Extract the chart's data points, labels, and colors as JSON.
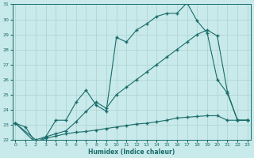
{
  "xlabel": "Humidex (Indice chaleur)",
  "bg_color": "#c9eaea",
  "grid_color": "#aed0d0",
  "line_color": "#1a6b6b",
  "xlim": [
    0,
    23
  ],
  "ylim": [
    22,
    31
  ],
  "yticks": [
    22,
    23,
    24,
    25,
    26,
    27,
    28,
    29,
    30,
    31
  ],
  "xticks": [
    0,
    1,
    2,
    3,
    4,
    5,
    6,
    7,
    8,
    9,
    10,
    11,
    12,
    13,
    14,
    15,
    16,
    17,
    18,
    19,
    20,
    21,
    22,
    23
  ],
  "line1_x": [
    0,
    1,
    2,
    3,
    4,
    5,
    6,
    7,
    8,
    9,
    10,
    11,
    12,
    13,
    14,
    15,
    16,
    17,
    18,
    19,
    20,
    21,
    22,
    23
  ],
  "line1_y": [
    23.1,
    22.85,
    21.8,
    22.1,
    22.25,
    22.4,
    22.5,
    22.55,
    22.65,
    22.75,
    22.85,
    22.95,
    23.05,
    23.1,
    23.2,
    23.3,
    23.45,
    23.5,
    23.55,
    23.6,
    23.6,
    23.3,
    23.3,
    23.3
  ],
  "line2_x": [
    0,
    2,
    3,
    4,
    5,
    6,
    7,
    8,
    9,
    10,
    11,
    12,
    13,
    14,
    15,
    16,
    17,
    18,
    19,
    20,
    21,
    22,
    23
  ],
  "line2_y": [
    23.1,
    22.0,
    22.2,
    22.4,
    22.6,
    23.2,
    23.9,
    24.5,
    24.1,
    25.0,
    25.5,
    26.0,
    26.5,
    27.0,
    27.5,
    28.0,
    28.5,
    29.0,
    29.3,
    28.9,
    25.2,
    23.3,
    23.3
  ],
  "line3_x": [
    0,
    2,
    3,
    4,
    5,
    6,
    7,
    8,
    9,
    10,
    11,
    12,
    13,
    14,
    15,
    16,
    17,
    18,
    19,
    20,
    21,
    22,
    23
  ],
  "line3_y": [
    23.1,
    21.8,
    22.2,
    23.3,
    23.3,
    24.5,
    25.3,
    24.3,
    23.9,
    28.8,
    28.5,
    29.3,
    29.7,
    30.2,
    30.4,
    30.4,
    31.1,
    29.9,
    29.1,
    26.0,
    25.1,
    23.3,
    23.3
  ]
}
